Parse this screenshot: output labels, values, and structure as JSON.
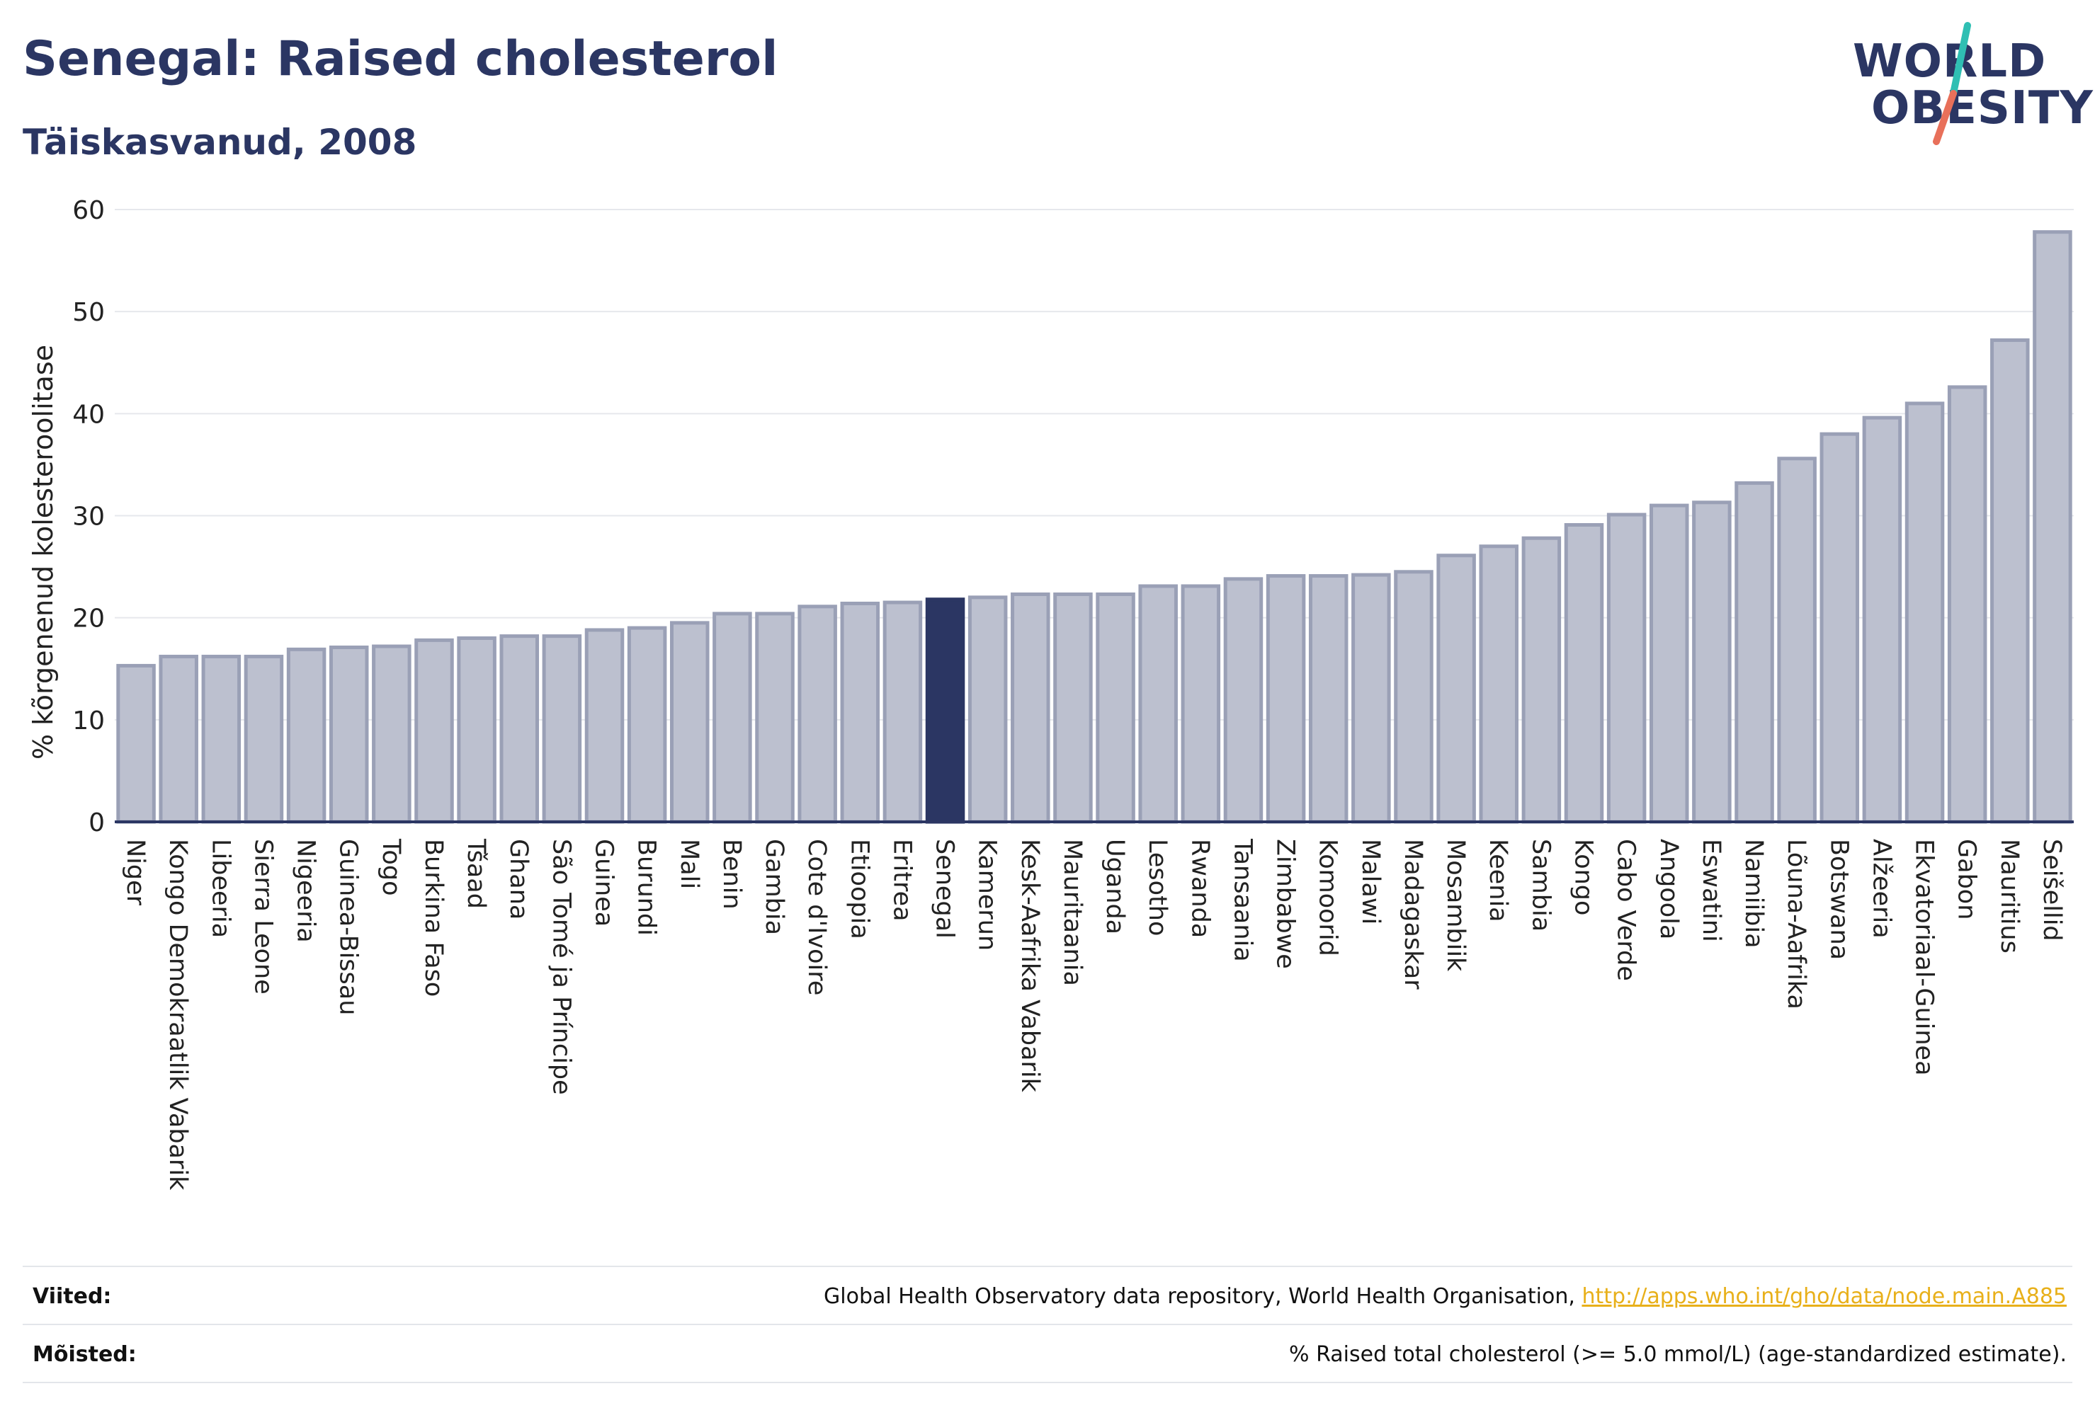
{
  "header": {
    "title": "Senegal: Raised cholesterol",
    "subtitle": "Täiskasvanud, 2008"
  },
  "logo": {
    "line1": "WORLD",
    "line2": "OBESITY"
  },
  "colors": {
    "bar": "#bcc0cf",
    "bar_border": "#9aa0b6",
    "highlight": "#2b3663",
    "grid": "#e6e8ec",
    "axis": "#2b3663",
    "logo_slash_teal": "#2fbfb3",
    "logo_slash_red": "#e8705a"
  },
  "chart_data": {
    "type": "bar",
    "ylabel": "% kõrgenenud kolesteroolitase",
    "ylim": [
      0,
      60
    ],
    "yticks": [
      0,
      10,
      20,
      30,
      40,
      50,
      60
    ],
    "highlight": "Senegal",
    "grid": true,
    "categories": [
      "Niger",
      "Kongo Demokraatlik Vabarik",
      "Libeeria",
      "Sierra Leone",
      "Nigeeria",
      "Guinea-Bissau",
      "Togo",
      "Burkina Faso",
      "Tšaad",
      "Ghana",
      "São Tomé ja Príncipe",
      "Guinea",
      "Burundi",
      "Mali",
      "Benin",
      "Gambia",
      "Cote d'Ivoire",
      "Etioopia",
      "Eritrea",
      "Senegal",
      "Kamerun",
      "Kesk-Aafrika Vabarik",
      "Mauritaania",
      "Uganda",
      "Lesotho",
      "Rwanda",
      "Tansaania",
      "Zimbabwe",
      "Komoorid",
      "Malawi",
      "Madagaskar",
      "Mosambiik",
      "Keenia",
      "Sambia",
      "Kongo",
      "Cabo Verde",
      "Angoola",
      "Eswatini",
      "Namiibia",
      "Lõuna-Aafrika",
      "Botswana",
      "Alžeeria",
      "Ekvatoriaal-Guinea",
      "Gabon",
      "Mauritius",
      "Seišellid"
    ],
    "values": [
      15.3,
      16.2,
      16.2,
      16.2,
      16.9,
      17.1,
      17.2,
      17.8,
      18.0,
      18.2,
      18.2,
      18.8,
      19.0,
      19.5,
      20.4,
      20.4,
      21.1,
      21.4,
      21.5,
      21.8,
      22.0,
      22.3,
      22.3,
      22.3,
      23.1,
      23.1,
      23.8,
      24.1,
      24.1,
      24.2,
      24.5,
      26.1,
      27.0,
      27.8,
      29.1,
      30.1,
      31.0,
      31.3,
      33.2,
      35.6,
      38.0,
      39.6,
      41.0,
      42.6,
      47.2,
      57.8
    ]
  },
  "footer": {
    "sources_label": "Viited:",
    "sources_text": "Global Health Observatory data repository, World Health Organisation, ",
    "sources_link": "http://apps.who.int/gho/data/node.main.A885",
    "definitions_label": "Mõisted:",
    "definitions_text": "% Raised total cholesterol (>= 5.0 mmol/L) (age-standardized estimate)."
  }
}
